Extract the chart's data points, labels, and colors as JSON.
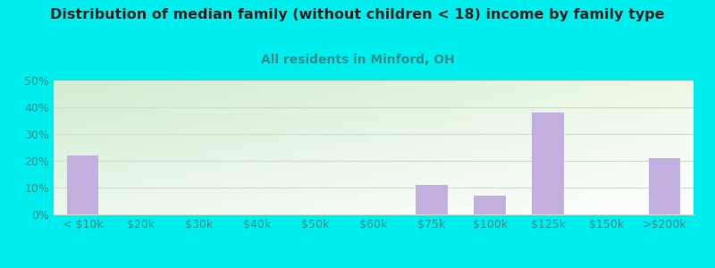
{
  "title": "Distribution of median family (without children < 18) income by family type",
  "subtitle": "All residents in Minford, OH",
  "categories": [
    "< $10k",
    "$20k",
    "$30k",
    "$40k",
    "$50k",
    "$60k",
    "$75k",
    "$100k",
    "$125k",
    "$150k",
    ">$200k"
  ],
  "values": [
    22.0,
    0.0,
    0.0,
    0.0,
    0.0,
    0.0,
    11.0,
    7.0,
    38.0,
    0.0,
    21.0
  ],
  "bar_color": "#c4b0e0",
  "background_color": "#00eeee",
  "title_color": "#222222",
  "subtitle_color": "#2a9090",
  "tick_color": "#2a9090",
  "grid_color": "#ccddcc",
  "ylim": [
    0,
    50
  ],
  "yticks": [
    0,
    10,
    20,
    30,
    40,
    50
  ],
  "title_fontsize": 11.5,
  "subtitle_fontsize": 10,
  "tick_fontsize": 9
}
